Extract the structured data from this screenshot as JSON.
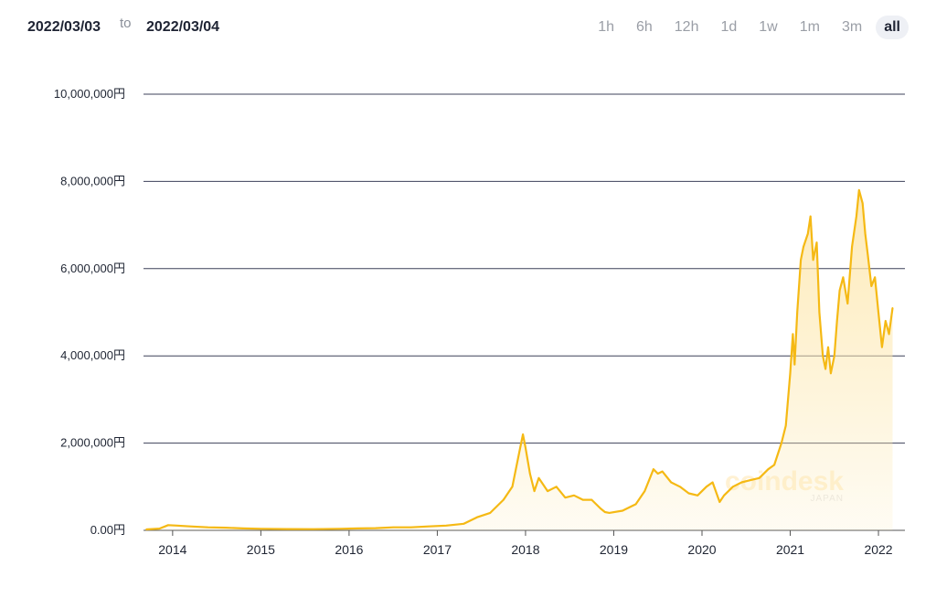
{
  "header": {
    "from_date": "2022/03/03",
    "separator": "to",
    "to_date": "2022/03/04",
    "ranges": [
      {
        "label": "1h",
        "active": false
      },
      {
        "label": "6h",
        "active": false
      },
      {
        "label": "12h",
        "active": false
      },
      {
        "label": "1d",
        "active": false
      },
      {
        "label": "1w",
        "active": false
      },
      {
        "label": "1m",
        "active": false
      },
      {
        "label": "3m",
        "active": false
      },
      {
        "label": "all",
        "active": true
      }
    ]
  },
  "watermark": {
    "brand": "coindesk",
    "sub": "JAPAN"
  },
  "colors": {
    "line": "#f5b914",
    "fill": "#fde8b0",
    "grid": "#3d4159"
  },
  "chart_data": {
    "type": "area",
    "title": "",
    "xlabel": "",
    "ylabel": "",
    "ylim": [
      0,
      10000000
    ],
    "xlim": [
      2013.67,
      2022.3
    ],
    "yticks": [
      {
        "value": 0,
        "label": "0.00円"
      },
      {
        "value": 2000000,
        "label": "2,000,000円"
      },
      {
        "value": 4000000,
        "label": "4,000,000円"
      },
      {
        "value": 6000000,
        "label": "6,000,000円"
      },
      {
        "value": 8000000,
        "label": "8,000,000円"
      },
      {
        "value": 10000000,
        "label": "10,000,000円"
      }
    ],
    "xticks": [
      {
        "value": 2014,
        "label": "2014"
      },
      {
        "value": 2015,
        "label": "2015"
      },
      {
        "value": 2016,
        "label": "2016"
      },
      {
        "value": 2017,
        "label": "2017"
      },
      {
        "value": 2018,
        "label": "2018"
      },
      {
        "value": 2019,
        "label": "2019"
      },
      {
        "value": 2020,
        "label": "2020"
      },
      {
        "value": 2021,
        "label": "2021"
      },
      {
        "value": 2022,
        "label": "2022"
      }
    ],
    "grid": true,
    "series": [
      {
        "x": [
          2013.7,
          2013.85,
          2013.95,
          2014.05,
          2014.2,
          2014.4,
          2014.6,
          2014.8,
          2015.0,
          2015.3,
          2015.6,
          2015.9,
          2016.1,
          2016.3,
          2016.5,
          2016.7,
          2016.9,
          2017.1,
          2017.3,
          2017.45,
          2017.6,
          2017.75,
          2017.85,
          2017.93,
          2017.97,
          2018.0,
          2018.05,
          2018.1,
          2018.15,
          2018.25,
          2018.35,
          2018.45,
          2018.55,
          2018.65,
          2018.75,
          2018.85,
          2018.9,
          2018.95,
          2019.1,
          2019.25,
          2019.35,
          2019.45,
          2019.5,
          2019.55,
          2019.65,
          2019.75,
          2019.85,
          2019.95,
          2020.05,
          2020.12,
          2020.2,
          2020.25,
          2020.35,
          2020.45,
          2020.55,
          2020.65,
          2020.75,
          2020.82,
          2020.9,
          2020.95,
          2021.0,
          2021.03,
          2021.05,
          2021.08,
          2021.12,
          2021.15,
          2021.2,
          2021.23,
          2021.26,
          2021.3,
          2021.33,
          2021.37,
          2021.4,
          2021.43,
          2021.46,
          2021.5,
          2021.53,
          2021.56,
          2021.6,
          2021.65,
          2021.7,
          2021.75,
          2021.78,
          2021.82,
          2021.85,
          2021.88,
          2021.92,
          2021.96,
          2022.0,
          2022.04,
          2022.08,
          2022.12,
          2022.16
        ],
        "values": [
          20000,
          40000,
          120000,
          110000,
          90000,
          70000,
          60000,
          45000,
          35000,
          30000,
          28000,
          35000,
          45000,
          50000,
          70000,
          70000,
          90000,
          110000,
          150000,
          300000,
          400000,
          700000,
          1000000,
          1800000,
          2200000,
          1900000,
          1300000,
          900000,
          1200000,
          900000,
          1000000,
          750000,
          800000,
          700000,
          700000,
          500000,
          420000,
          400000,
          450000,
          600000,
          900000,
          1400000,
          1300000,
          1350000,
          1100000,
          1000000,
          850000,
          800000,
          1000000,
          1100000,
          650000,
          800000,
          1000000,
          1100000,
          1150000,
          1200000,
          1400000,
          1500000,
          2000000,
          2400000,
          3600000,
          4500000,
          3800000,
          5000000,
          6200000,
          6500000,
          6800000,
          7200000,
          6200000,
          6600000,
          5000000,
          4000000,
          3700000,
          4200000,
          3600000,
          4000000,
          4800000,
          5500000,
          5800000,
          5200000,
          6500000,
          7200000,
          7800000,
          7500000,
          6800000,
          6300000,
          5600000,
          5800000,
          5000000,
          4200000,
          4800000,
          4500000,
          5100000
        ]
      }
    ]
  }
}
